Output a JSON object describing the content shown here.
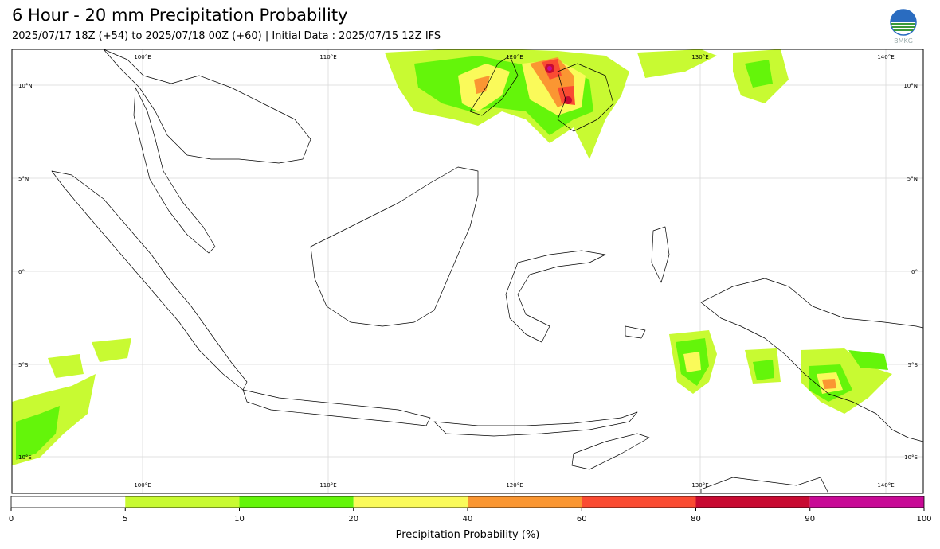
{
  "header": {
    "title": "6 Hour - 20 mm Precipitation Probability",
    "subtitle": "2025/07/17 18Z (+54) to 2025/07/18 00Z (+60) | Initial Data : 2025/07/15 12Z IFS",
    "logo_text": "BMKG"
  },
  "map": {
    "lon_labels": [
      "100°E",
      "110°E",
      "120°E",
      "130°E",
      "140°E"
    ],
    "lat_labels_left": [
      "10°N",
      "5°N",
      "0°",
      "5°S",
      "10°S"
    ],
    "lat_labels_right": [
      "10°N",
      "5°N",
      "0°",
      "5°S",
      "10°S"
    ],
    "extent": {
      "lon": [
        93,
        142
      ],
      "lat": [
        -12,
        12
      ]
    }
  },
  "colorbar": {
    "label": "Precipitation Probability (%)",
    "ticks": [
      "0",
      "5",
      "10",
      "20",
      "40",
      "60",
      "80",
      "90",
      "100"
    ],
    "bins": [
      {
        "from": 0,
        "to": 5,
        "color": "#ffffff"
      },
      {
        "from": 5,
        "to": 10,
        "color": "#c8fa32"
      },
      {
        "from": 10,
        "to": 20,
        "color": "#64f50a"
      },
      {
        "from": 20,
        "to": 40,
        "color": "#fafa5a"
      },
      {
        "from": 40,
        "to": 60,
        "color": "#fa9632"
      },
      {
        "from": 60,
        "to": 80,
        "color": "#fa4b32"
      },
      {
        "from": 80,
        "to": 90,
        "color": "#c80a32"
      },
      {
        "from": 90,
        "to": 100,
        "color": "#c80a96"
      }
    ]
  }
}
